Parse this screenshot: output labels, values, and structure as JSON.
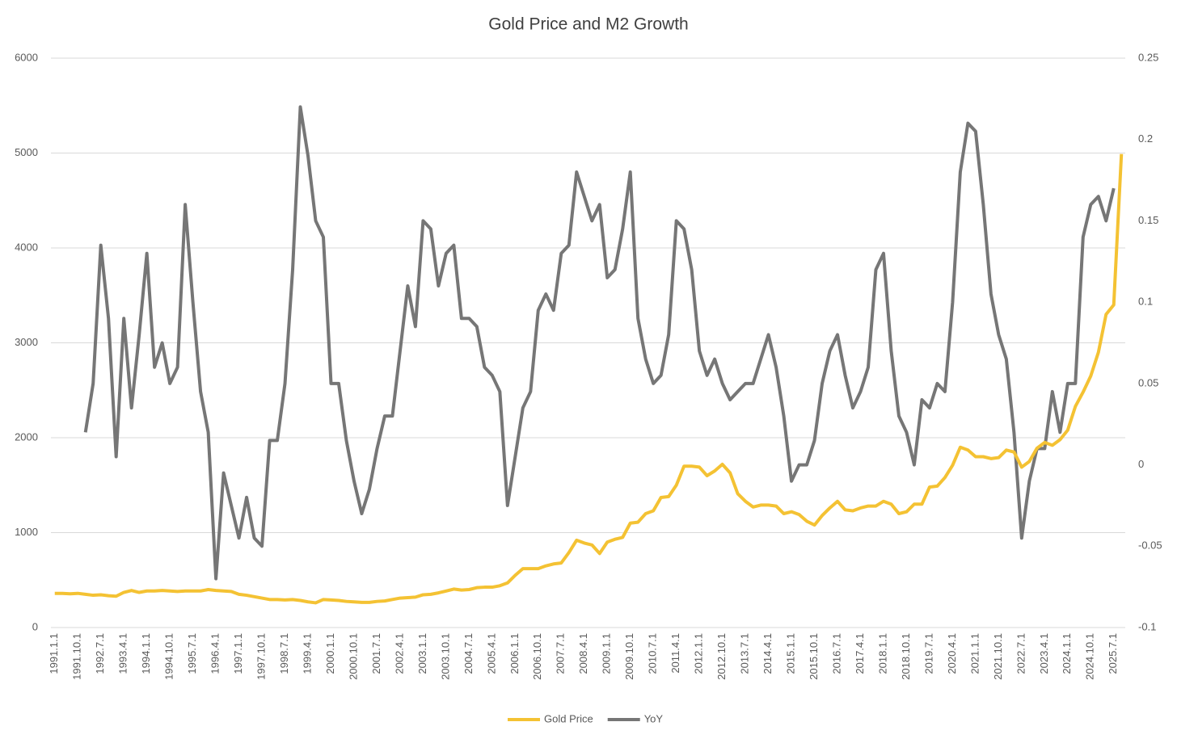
{
  "chart_data": {
    "type": "line",
    "title": "Gold Price and M2 Growth",
    "categories": [
      "1991.1.1",
      null,
      null,
      "1991.10.1",
      null,
      null,
      "1992.7.1",
      null,
      null,
      "1993.4.1",
      null,
      null,
      "1994.1.1",
      null,
      null,
      "1994.10.1",
      null,
      null,
      "1995.7.1",
      null,
      null,
      "1996.4.1",
      null,
      null,
      "1997.1.1",
      null,
      null,
      "1997.10.1",
      null,
      null,
      "1998.7.1",
      null,
      null,
      "1999.4.1",
      null,
      null,
      "2000.1.1",
      null,
      null,
      "2000.10.1",
      null,
      null,
      "2001.7.1",
      null,
      null,
      "2002.4.1",
      null,
      null,
      "2003.1.1",
      null,
      null,
      "2003.10.1",
      null,
      null,
      "2004.7.1",
      null,
      null,
      "2005.4.1",
      null,
      null,
      "2006.1.1",
      null,
      null,
      "2006.10.1",
      null,
      null,
      "2007.7.1",
      null,
      null,
      "2008.4.1",
      null,
      null,
      "2009.1.1",
      null,
      null,
      "2009.10.1",
      null,
      null,
      "2010.7.1",
      null,
      null,
      "2011.4.1",
      null,
      null,
      "2012.1.1",
      null,
      null,
      "2012.10.1",
      null,
      null,
      "2013.7.1",
      null,
      null,
      "2014.4.1",
      null,
      null,
      "2015.1.1",
      null,
      null,
      "2015.10.1",
      null,
      null,
      "2016.7.1",
      null,
      null,
      "2017.4.1",
      null,
      null,
      "2018.1.1",
      null,
      null,
      "2018.10.1",
      null,
      null,
      "2019.7.1",
      null,
      null,
      "2020.4.1",
      null,
      null,
      "2021.1.1",
      null,
      null,
      "2021.10.1",
      null,
      null,
      "2022.7.1",
      null,
      null,
      "2023.4.1",
      null,
      null,
      "2024.1.1",
      null,
      null,
      "2024.10.1",
      null,
      null,
      "2025.7.1",
      null
    ],
    "series": [
      {
        "name": "Gold Price",
        "color": "#f4c233",
        "axis": "y",
        "values": [
          360,
          360,
          355,
          360,
          350,
          340,
          345,
          335,
          330,
          370,
          390,
          370,
          385,
          385,
          390,
          385,
          380,
          385,
          385,
          385,
          400,
          390,
          385,
          380,
          350,
          340,
          325,
          310,
          295,
          295,
          290,
          295,
          285,
          270,
          260,
          295,
          290,
          285,
          275,
          270,
          265,
          265,
          275,
          280,
          295,
          310,
          315,
          320,
          345,
          350,
          365,
          385,
          405,
          395,
          400,
          420,
          425,
          425,
          440,
          470,
          550,
          620,
          620,
          620,
          650,
          670,
          680,
          790,
          920,
          890,
          870,
          780,
          900,
          930,
          950,
          1100,
          1110,
          1200,
          1230,
          1370,
          1380,
          1500,
          1700,
          1700,
          1690,
          1600,
          1650,
          1720,
          1630,
          1410,
          1330,
          1270,
          1290,
          1290,
          1280,
          1200,
          1220,
          1190,
          1120,
          1080,
          1180,
          1260,
          1330,
          1240,
          1230,
          1260,
          1280,
          1280,
          1330,
          1300,
          1200,
          1220,
          1300,
          1300,
          1480,
          1490,
          1580,
          1710,
          1900,
          1870,
          1800,
          1800,
          1780,
          1790,
          1870,
          1850,
          1690,
          1750,
          1890,
          1950,
          1920,
          1980,
          2080,
          2330,
          2480,
          2650,
          2900,
          3300,
          3400,
          4990
        ]
      },
      {
        "name": "YoY",
        "color": "#767676",
        "axis": "y2",
        "values": [
          null,
          null,
          null,
          null,
          0.02,
          0.05,
          0.135,
          0.09,
          0.005,
          0.09,
          0.035,
          0.08,
          0.13,
          0.06,
          0.075,
          0.05,
          0.06,
          0.16,
          0.1,
          0.045,
          0.02,
          -0.07,
          -0.005,
          -0.025,
          -0.045,
          -0.02,
          -0.045,
          -0.05,
          0.015,
          0.015,
          0.05,
          0.12,
          0.22,
          0.19,
          0.15,
          0.14,
          0.05,
          0.05,
          0.015,
          -0.01,
          -0.03,
          -0.015,
          0.01,
          0.03,
          0.03,
          0.07,
          0.11,
          0.085,
          0.15,
          0.145,
          0.11,
          0.13,
          0.135,
          0.09,
          0.09,
          0.085,
          0.06,
          0.055,
          0.045,
          -0.025,
          0.005,
          0.035,
          0.045,
          0.095,
          0.105,
          0.095,
          0.13,
          0.135,
          0.18,
          0.165,
          0.15,
          0.16,
          0.115,
          0.12,
          0.145,
          0.18,
          0.09,
          0.065,
          0.05,
          0.055,
          0.08,
          0.15,
          0.145,
          0.12,
          0.07,
          0.055,
          0.065,
          0.05,
          0.04,
          0.045,
          0.05,
          0.05,
          0.065,
          0.08,
          0.06,
          0.03,
          -0.01,
          0,
          0,
          0.015,
          0.05,
          0.07,
          0.08,
          0.055,
          0.035,
          0.045,
          0.06,
          0.12,
          0.13,
          0.07,
          0.03,
          0.02,
          0,
          0.04,
          0.035,
          0.05,
          0.045,
          0.1,
          0.18,
          0.21,
          0.205,
          0.16,
          0.105,
          0.08,
          0.065,
          0.02,
          -0.045,
          -0.01,
          0.01,
          0.01,
          0.045,
          0.02,
          0.05,
          0.05,
          0.14,
          0.16,
          0.165,
          0.15,
          0.17,
          null
        ]
      }
    ],
    "ylim": [
      0,
      6000
    ],
    "yticks": [
      0,
      1000,
      2000,
      3000,
      4000,
      5000,
      6000
    ],
    "y2lim": [
      -0.1,
      0.25
    ],
    "y2ticks": [
      -0.1,
      -0.05,
      0,
      0.05,
      0.1,
      0.15,
      0.2,
      0.25
    ],
    "grid": true,
    "legend": "bottom"
  }
}
